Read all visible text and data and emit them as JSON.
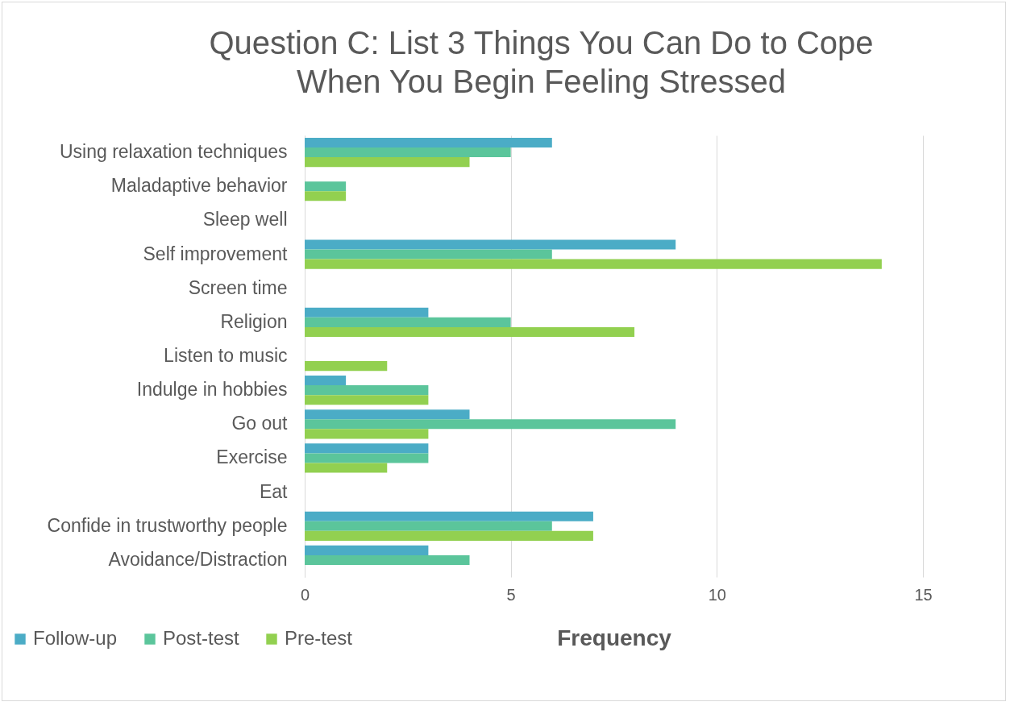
{
  "chart_data": {
    "type": "bar",
    "orientation": "horizontal",
    "title": "Question C: List 3 Things You Can Do to Cope When You Begin Feeling Stressed",
    "xlabel": "Frequency",
    "categories": [
      "Using relaxation techniques",
      "Maladaptive behavior",
      "Sleep well",
      "Self improvement",
      "Screen time",
      "Religion",
      "Listen to music",
      "Indulge in hobbies",
      "Go out",
      "Exercise",
      "Eat",
      "Confide in trustworthy people",
      "Avoidance/Distraction"
    ],
    "series": [
      {
        "name": "Follow-up",
        "color": "#4bacc6",
        "values": [
          6,
          0,
          0,
          9,
          0,
          3,
          0,
          1,
          4,
          3,
          0,
          7,
          3
        ]
      },
      {
        "name": "Post-test",
        "color": "#5bc59b",
        "values": [
          5,
          1,
          0,
          6,
          0,
          5,
          0,
          3,
          9,
          3,
          0,
          6,
          4
        ]
      },
      {
        "name": "Pre-test",
        "color": "#92d050",
        "values": [
          4,
          1,
          0,
          14,
          0,
          8,
          2,
          3,
          3,
          2,
          0,
          7,
          0
        ]
      }
    ],
    "xlim": [
      0,
      15
    ],
    "xticks": [
      0,
      5,
      10,
      15
    ],
    "grid": "x",
    "legend": "bottom left"
  }
}
